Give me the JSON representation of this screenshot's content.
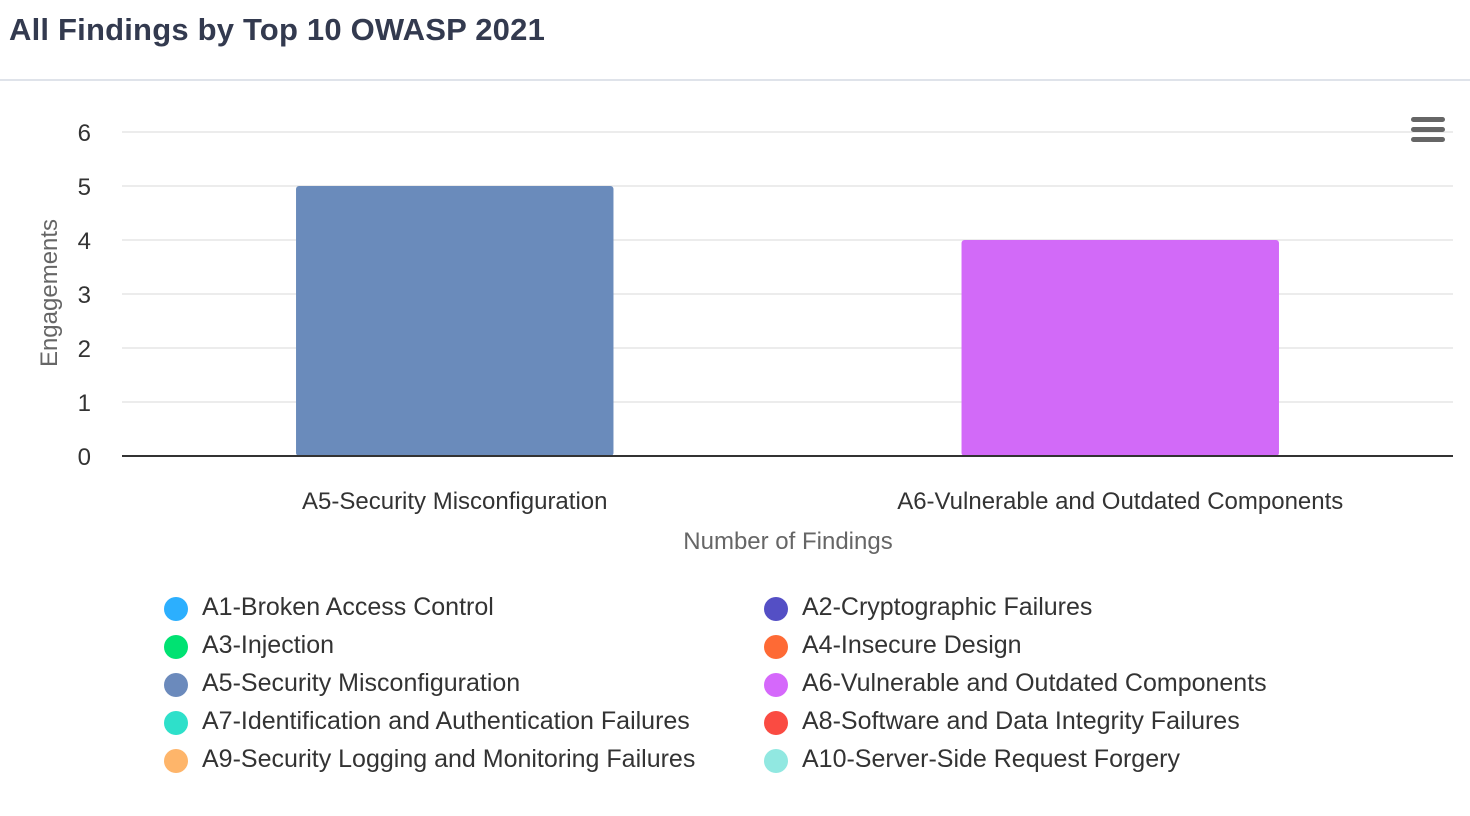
{
  "header": {
    "title": "All Findings by Top 10 OWASP 2021"
  },
  "menu": {
    "icon": "hamburger-menu-icon"
  },
  "chart_data": {
    "type": "bar",
    "title": "All Findings by Top 10 OWASP 2021",
    "categories": [
      "A5-Security Misconfiguration",
      "A6-Vulnerable and Outdated Components"
    ],
    "values": [
      5,
      4
    ],
    "bar_colors": [
      "#6a8bbb",
      "#d26af8"
    ],
    "xlabel": "Number of Findings",
    "ylabel": "Engagements",
    "ylim": [
      0,
      6
    ],
    "yticks": [
      "0",
      "1",
      "2",
      "3",
      "4",
      "5",
      "6"
    ],
    "grid": true,
    "legend": {
      "placement": "bottom",
      "items": [
        {
          "label": "A1-Broken Access Control",
          "color": "#2caffe"
        },
        {
          "label": "A2-Cryptographic Failures",
          "color": "#544fc5"
        },
        {
          "label": "A3-Injection",
          "color": "#00e272"
        },
        {
          "label": "A4-Insecure Design",
          "color": "#fe6a35"
        },
        {
          "label": "A5-Security Misconfiguration",
          "color": "#6b8abc"
        },
        {
          "label": "A6-Vulnerable and Outdated Components",
          "color": "#d568fb"
        },
        {
          "label": "A7-Identification and Authentication Failures",
          "color": "#2ee0ca"
        },
        {
          "label": "A8-Software and Data Integrity Failures",
          "color": "#fa4b42"
        },
        {
          "label": "A9-Security Logging and Monitoring Failures",
          "color": "#feb56a"
        },
        {
          "label": "A10-Server-Side Request Forgery",
          "color": "#91e8e1"
        }
      ]
    }
  }
}
